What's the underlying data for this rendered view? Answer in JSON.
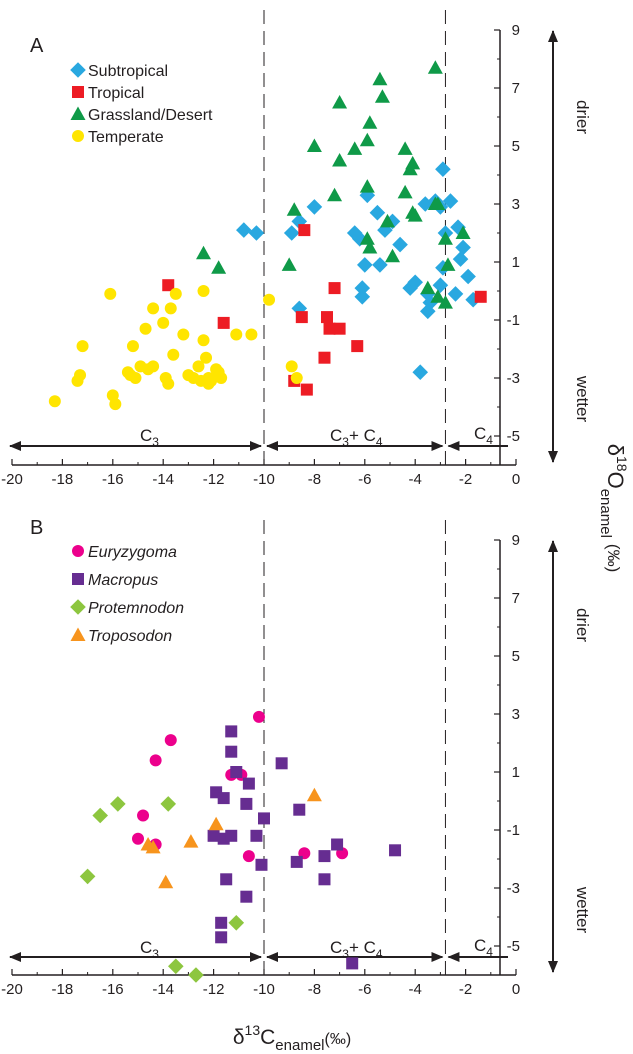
{
  "figure": {
    "x_title_delta": "δ",
    "x_title_sup": "13",
    "x_title_main": "C",
    "x_title_sub": "enamel",
    "x_title_unit": "(‰)",
    "y_title_delta": "δ",
    "y_title_sup": "18",
    "y_title_main": "O",
    "y_title_sub": "enamel",
    "y_title_unit": "(‰)",
    "drier_label": "drier",
    "wetter_label": "wetter",
    "c3_label": "C",
    "c3_sub": "3",
    "c3c4_label": "C",
    "c3c4_sub": "3",
    "c3c4_plus": "+ C",
    "c3c4_sub2": "4",
    "c4_label": "C",
    "c4_sub": "4"
  },
  "colors": {
    "subtropical": "#29a8e0",
    "tropical": "#ed1c24",
    "grassland": "#0f9a48",
    "temperate": "#ffe500",
    "euryzygoma": "#ec008c",
    "macropus": "#662d91",
    "protemnodon": "#8dc63f",
    "troposodon": "#f7941d",
    "axis": "#231f20"
  },
  "chart_data": [
    {
      "type": "scatter",
      "panel_label": "A",
      "xlim": [
        -20,
        0
      ],
      "ylim": [
        -6,
        9
      ],
      "x_ticks": [
        "-20",
        "-18",
        "-16",
        "-14",
        "-12",
        "-10",
        "-8",
        "-6",
        "-4",
        "-2",
        "0"
      ],
      "y_ticks": [
        "9",
        "7",
        "5",
        "3",
        "1",
        "-1",
        "-3",
        "-5"
      ],
      "dividers_x": [
        -10,
        -2.8
      ],
      "legend_position": "top-left",
      "series": [
        {
          "name": "Subtropical",
          "marker": "diamond",
          "color_key": "subtropical",
          "points": [
            [
              -10.8,
              2.1
            ],
            [
              -10.3,
              2.0
            ],
            [
              -8.9,
              2.0
            ],
            [
              -8.6,
              2.4
            ],
            [
              -8.0,
              2.9
            ],
            [
              -8.6,
              -0.6
            ],
            [
              -6.4,
              2.0
            ],
            [
              -6.2,
              1.8
            ],
            [
              -5.9,
              3.3
            ],
            [
              -5.5,
              2.7
            ],
            [
              -5.2,
              2.1
            ],
            [
              -4.9,
              2.4
            ],
            [
              -4.6,
              1.6
            ],
            [
              -6.0,
              0.9
            ],
            [
              -5.4,
              0.9
            ],
            [
              -6.1,
              0.1
            ],
            [
              -6.1,
              -0.2
            ],
            [
              -4.2,
              0.1
            ],
            [
              -4.0,
              0.3
            ],
            [
              -3.6,
              3.0
            ],
            [
              -3.2,
              3.1
            ],
            [
              -3.0,
              2.9
            ],
            [
              -2.9,
              4.2
            ],
            [
              -2.6,
              3.1
            ],
            [
              -2.3,
              2.2
            ],
            [
              -2.1,
              1.5
            ],
            [
              -2.9,
              0.8
            ],
            [
              -2.2,
              1.1
            ],
            [
              -1.9,
              0.5
            ],
            [
              -3.0,
              0.2
            ],
            [
              -3.5,
              -0.1
            ],
            [
              -3.4,
              -0.4
            ],
            [
              -3.5,
              -0.7
            ],
            [
              -2.4,
              -0.1
            ],
            [
              -1.7,
              -0.3
            ],
            [
              -3.8,
              -2.8
            ],
            [
              -2.8,
              2.0
            ]
          ]
        },
        {
          "name": "Tropical",
          "marker": "square",
          "color_key": "tropical",
          "points": [
            [
              -13.8,
              0.2
            ],
            [
              -11.6,
              -1.1
            ],
            [
              -8.4,
              2.1
            ],
            [
              -8.5,
              -0.9
            ],
            [
              -7.5,
              -0.9
            ],
            [
              -7.4,
              -1.3
            ],
            [
              -7.2,
              0.1
            ],
            [
              -7.6,
              -2.3
            ],
            [
              -7.0,
              -1.3
            ],
            [
              -6.3,
              -1.9
            ],
            [
              -8.3,
              -3.4
            ],
            [
              -8.8,
              -3.1
            ],
            [
              -1.4,
              -0.2
            ]
          ]
        },
        {
          "name": "Grassland/Desert",
          "marker": "triangle",
          "color_key": "grassland",
          "points": [
            [
              -12.4,
              1.3
            ],
            [
              -11.8,
              0.8
            ],
            [
              -8.8,
              2.8
            ],
            [
              -9.0,
              0.9
            ],
            [
              -8.0,
              5.0
            ],
            [
              -7.0,
              6.5
            ],
            [
              -7.2,
              3.3
            ],
            [
              -7.0,
              4.5
            ],
            [
              -6.4,
              4.9
            ],
            [
              -5.9,
              3.6
            ],
            [
              -5.8,
              5.8
            ],
            [
              -5.9,
              5.2
            ],
            [
              -5.4,
              7.3
            ],
            [
              -5.3,
              6.7
            ],
            [
              -5.1,
              2.4
            ],
            [
              -5.9,
              1.8
            ],
            [
              -5.8,
              1.5
            ],
            [
              -4.9,
              1.2
            ],
            [
              -4.4,
              3.4
            ],
            [
              -4.4,
              4.9
            ],
            [
              -4.2,
              4.2
            ],
            [
              -4.1,
              4.4
            ],
            [
              -4.1,
              2.7
            ],
            [
              -4.0,
              2.6
            ],
            [
              -3.5,
              0.1
            ],
            [
              -3.2,
              3.0
            ],
            [
              -3.2,
              7.7
            ],
            [
              -3.1,
              3.0
            ],
            [
              -2.8,
              1.8
            ],
            [
              -2.7,
              0.9
            ],
            [
              -2.1,
              2.0
            ],
            [
              -3.1,
              -0.2
            ],
            [
              -2.8,
              -0.4
            ]
          ]
        },
        {
          "name": "Temperate",
          "marker": "circle",
          "color_key": "temperate",
          "points": [
            [
              -18.3,
              -3.8
            ],
            [
              -17.4,
              -3.1
            ],
            [
              -17.3,
              -2.9
            ],
            [
              -17.2,
              -1.9
            ],
            [
              -15.9,
              -3.9
            ],
            [
              -15.4,
              -2.8
            ],
            [
              -15.2,
              -1.9
            ],
            [
              -15.3,
              -2.9
            ],
            [
              -15.1,
              -3.0
            ],
            [
              -14.9,
              -2.6
            ],
            [
              -14.7,
              -1.3
            ],
            [
              -14.6,
              -2.7
            ],
            [
              -14.4,
              -0.6
            ],
            [
              -14.4,
              -2.6
            ],
            [
              -14.0,
              -1.1
            ],
            [
              -13.8,
              -3.2
            ],
            [
              -13.7,
              -0.6
            ],
            [
              -13.6,
              -2.2
            ],
            [
              -13.2,
              -1.5
            ],
            [
              -13.0,
              -2.9
            ],
            [
              -12.6,
              -2.6
            ],
            [
              -12.5,
              -3.1
            ],
            [
              -12.3,
              -2.3
            ],
            [
              -12.2,
              -3.0
            ],
            [
              -12.1,
              -3.1
            ],
            [
              -11.9,
              -2.7
            ],
            [
              -11.7,
              -3.0
            ],
            [
              -12.4,
              -1.7
            ],
            [
              -11.8,
              -2.8
            ],
            [
              -11.1,
              -1.5
            ],
            [
              -10.5,
              -1.5
            ],
            [
              -9.8,
              -0.3
            ],
            [
              -8.9,
              -2.6
            ],
            [
              -8.7,
              -3.0
            ],
            [
              -16.0,
              -3.6
            ],
            [
              -13.9,
              -3.0
            ],
            [
              -12.8,
              -3.0
            ],
            [
              -12.2,
              -3.2
            ],
            [
              -16.1,
              -0.1
            ],
            [
              -13.5,
              -0.1
            ],
            [
              -12.4,
              0.0
            ]
          ]
        }
      ]
    },
    {
      "type": "scatter",
      "panel_label": "B",
      "xlim": [
        -20,
        0
      ],
      "ylim": [
        -6,
        9
      ],
      "x_ticks": [
        "-20",
        "-18",
        "-16",
        "-14",
        "-12",
        "-10",
        "-8",
        "-6",
        "-4",
        "-2",
        "0"
      ],
      "y_ticks": [
        "9",
        "7",
        "5",
        "3",
        "1",
        "-1",
        "-3",
        "-5"
      ],
      "dividers_x": [
        -10,
        -2.8
      ],
      "legend_position": "top-left",
      "series": [
        {
          "name": "Euryzygoma",
          "marker": "circle",
          "color_key": "euryzygoma",
          "points": [
            [
              -13.7,
              2.1
            ],
            [
              -14.3,
              1.4
            ],
            [
              -14.8,
              -0.5
            ],
            [
              -15.0,
              -1.3
            ],
            [
              -14.3,
              -1.5
            ],
            [
              -11.3,
              0.9
            ],
            [
              -10.9,
              0.9
            ],
            [
              -10.2,
              2.9
            ],
            [
              -10.6,
              -1.9
            ],
            [
              -8.4,
              -1.8
            ],
            [
              -6.9,
              -1.8
            ]
          ]
        },
        {
          "name": "Macropus",
          "marker": "square",
          "color_key": "macropus",
          "points": [
            [
              -11.3,
              2.4
            ],
            [
              -11.3,
              1.7
            ],
            [
              -11.9,
              0.3
            ],
            [
              -11.6,
              0.1
            ],
            [
              -11.1,
              1.0
            ],
            [
              -10.6,
              0.6
            ],
            [
              -12.0,
              -1.2
            ],
            [
              -11.6,
              -1.3
            ],
            [
              -11.3,
              -1.2
            ],
            [
              -10.7,
              -0.1
            ],
            [
              -10.3,
              -1.2
            ],
            [
              -10.0,
              -0.6
            ],
            [
              -11.5,
              -2.7
            ],
            [
              -10.7,
              -3.3
            ],
            [
              -11.7,
              -4.2
            ],
            [
              -11.7,
              -4.7
            ],
            [
              -10.1,
              -2.2
            ],
            [
              -9.3,
              1.3
            ],
            [
              -8.6,
              -0.3
            ],
            [
              -8.7,
              -2.1
            ],
            [
              -7.6,
              -1.9
            ],
            [
              -7.6,
              -2.7
            ],
            [
              -7.1,
              -1.5
            ],
            [
              -6.5,
              -5.6
            ],
            [
              -4.8,
              -1.7
            ]
          ]
        },
        {
          "name": "Protemnodon",
          "marker": "diamond",
          "color_key": "protemnodon",
          "points": [
            [
              -16.5,
              -0.5
            ],
            [
              -15.8,
              -0.1
            ],
            [
              -13.8,
              -0.1
            ],
            [
              -17.0,
              -2.6
            ],
            [
              -11.1,
              -4.2
            ],
            [
              -13.5,
              -5.7
            ],
            [
              -12.7,
              -6.0
            ]
          ]
        },
        {
          "name": "Troposodon",
          "marker": "triangle",
          "color_key": "troposodon",
          "points": [
            [
              -14.6,
              -1.5
            ],
            [
              -14.4,
              -1.6
            ],
            [
              -12.9,
              -1.4
            ],
            [
              -11.9,
              -0.8
            ],
            [
              -13.9,
              -2.8
            ],
            [
              -8.0,
              0.2
            ]
          ]
        }
      ]
    }
  ]
}
